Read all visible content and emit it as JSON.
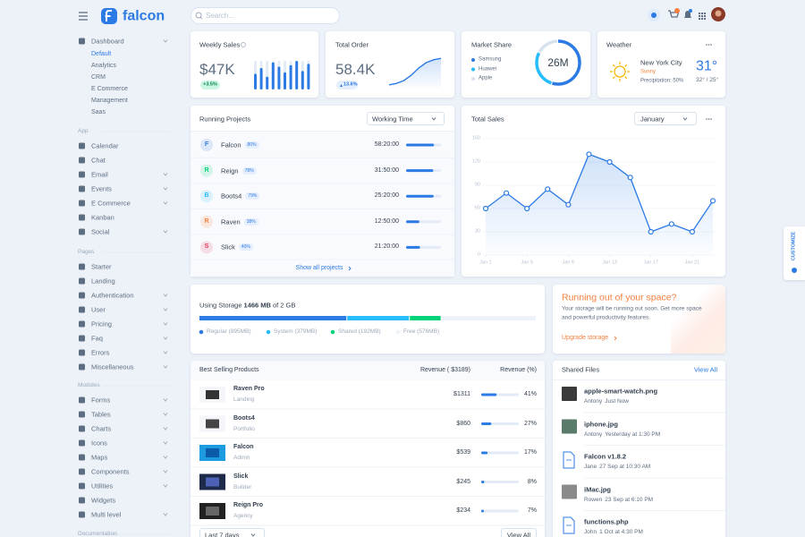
{
  "topbar": {
    "brand": "falcon",
    "search_placeholder": "Search..."
  },
  "sidebar": {
    "dashboard": {
      "label": "Dashboard",
      "children": [
        "Default",
        "Analytics",
        "CRM",
        "E Commerce",
        "Management",
        "Saas"
      ]
    },
    "sections": [
      {
        "title": "App",
        "items": [
          "Calendar",
          "Chat",
          "Email",
          "Events",
          "E Commerce",
          "Kanban",
          "Social"
        ]
      },
      {
        "title": "Pages",
        "items": [
          "Starter",
          "Landing",
          "Authentication",
          "User",
          "Pricing",
          "Faq",
          "Errors",
          "Miscellaneous"
        ]
      },
      {
        "title": "Modules",
        "items": [
          "Forms",
          "Tables",
          "Charts",
          "Icons",
          "Maps",
          "Components",
          "Utilities",
          "Widgets",
          "Multi level"
        ]
      },
      {
        "title": "Documentation"
      }
    ]
  },
  "weekly_sales": {
    "title": "Weekly Sales",
    "value": "$47K",
    "change": "+3.5%",
    "bars": [
      55,
      75,
      45,
      95,
      80,
      60,
      85,
      100,
      65,
      90
    ],
    "color": "#2c7be5"
  },
  "total_order": {
    "title": "Total Order",
    "value": "58.4K",
    "change": "13.6%",
    "trend": [
      8,
      12,
      20,
      35,
      55,
      70,
      78,
      82
    ],
    "color": "#2c7be5"
  },
  "market_share": {
    "title": "Market Share",
    "total": "26M",
    "brands": [
      {
        "name": "Samsung",
        "value": 55,
        "color": "#2c7be5"
      },
      {
        "name": "Huawei",
        "value": 28,
        "color": "#27bcfd"
      },
      {
        "name": "Apple",
        "value": 17,
        "color": "#d8e2ef"
      }
    ]
  },
  "weather": {
    "title": "Weather",
    "city": "New York City",
    "condition": "Sunny",
    "precipitation": "Precipitation: 50%",
    "temperature": "31°",
    "range": "32° / 25°"
  },
  "running_projects": {
    "title": "Running Projects",
    "filter": "Working Time",
    "link": "Show all projects",
    "projects": [
      {
        "letter": "F",
        "name": "Falcon",
        "percent": 80,
        "percent_label": "80%",
        "time": "58:20:00",
        "color": "#2c7be5"
      },
      {
        "letter": "R",
        "name": "Reign",
        "percent": 78,
        "percent_label": "78%",
        "time": "31:50:00",
        "color": "#00d27a"
      },
      {
        "letter": "B",
        "name": "Boots4",
        "percent": 79,
        "percent_label": "79%",
        "time": "25:20:00",
        "color": "#27bcfd"
      },
      {
        "letter": "R",
        "name": "Raven",
        "percent": 38,
        "percent_label": "38%",
        "time": "12:50:00",
        "color": "#f5803e"
      },
      {
        "letter": "S",
        "name": "Slick",
        "percent": 40,
        "percent_label": "40%",
        "time": "21:20:00",
        "color": "#e63757"
      }
    ]
  },
  "chart_data": {
    "type": "line",
    "title": "Total Sales",
    "filter": "January",
    "x": [
      1,
      3,
      5,
      7,
      9,
      11,
      13,
      15,
      17,
      19,
      21,
      23
    ],
    "series": [
      {
        "name": "Total Sales",
        "color": "#2c7be5",
        "values": [
          60,
          80,
          60,
          85,
          65,
          130,
          120,
          100,
          30,
          40,
          30,
          70
        ]
      }
    ],
    "xlim": [
      1,
      23
    ],
    "xticks": [
      {
        "value": 1,
        "label": "Jan 1"
      },
      {
        "value": 5,
        "label": "Jan 5"
      },
      {
        "value": 9,
        "label": "Jan 9"
      },
      {
        "value": 13,
        "label": "Jan 13"
      },
      {
        "value": 17,
        "label": "Jan 17"
      },
      {
        "value": 21,
        "label": "Jan 21"
      }
    ],
    "ylim": [
      0,
      150
    ],
    "yticks": [
      0,
      30,
      60,
      90,
      120,
      150
    ],
    "grid": true
  },
  "storage": {
    "prefix": "Using Storage",
    "used": "1466 MB",
    "suffix": "of 2 GB",
    "segments": [
      {
        "label": "Regular (895MB)",
        "value": 895,
        "color": "#2c7be5"
      },
      {
        "label": "System (379MB)",
        "value": 379,
        "color": "#27bcfd"
      },
      {
        "label": "Shared (192MB)",
        "value": 192,
        "color": "#00d27a"
      },
      {
        "label": "Free (576MB)",
        "value": 576,
        "color": "#edf2f9"
      }
    ]
  },
  "space": {
    "title": "Running out of your space?",
    "text": "Your storage will be running out soon. Get more space and powerful productivity features.",
    "link": "Upgrade storage"
  },
  "best_selling": {
    "headers": [
      "Best Selling Products",
      "Revenue ( $3189)",
      "Revenue (%)"
    ],
    "filter": "Last 7 days",
    "button": "View All",
    "rows": [
      {
        "name": "Raven Pro",
        "category": "Landing",
        "revenue": "$1311",
        "share": 41,
        "share_label": "41%"
      },
      {
        "name": "Boots4",
        "category": "Portfolio",
        "revenue": "$860",
        "share": 27,
        "share_label": "27%"
      },
      {
        "name": "Falcon",
        "category": "Admin",
        "revenue": "$539",
        "share": 17,
        "share_label": "17%"
      },
      {
        "name": "Slick",
        "category": "Builder",
        "revenue": "$245",
        "share": 8,
        "share_label": "8%"
      },
      {
        "name": "Reign Pro",
        "category": "Agency",
        "revenue": "$234",
        "share": 7,
        "share_label": "7%"
      }
    ]
  },
  "shared_files": {
    "title": "Shared Files",
    "link": "View All",
    "files": [
      {
        "name": "apple-smart-watch.png",
        "user": "Antony",
        "time": "Just Now"
      },
      {
        "name": "iphone.jpg",
        "user": "Antony",
        "time": "Yesterday at 1:30 PM"
      },
      {
        "name": "Falcon v1.8.2",
        "user": "Jane",
        "time": "27 Sep at 10:30 AM"
      },
      {
        "name": "iMac.jpg",
        "user": "Rowen",
        "time": "23 Sep at 6:10 PM"
      },
      {
        "name": "functions.php",
        "user": "John",
        "time": "1 Oct at 4:30 PM"
      }
    ]
  },
  "customize": "CUSTOMIZE"
}
